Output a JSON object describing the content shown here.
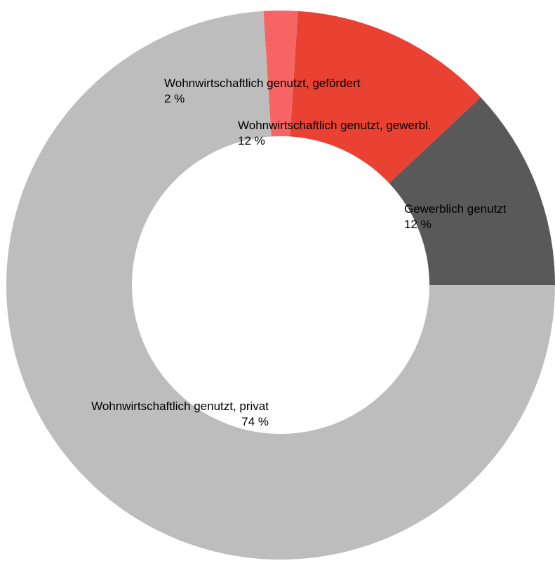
{
  "chart_data": {
    "type": "pie",
    "donut": true,
    "start": "3 o'clock, counter-clockwise",
    "slices": [
      {
        "label": "Gewerblich genutzt",
        "value": 12,
        "value_label": "12 %",
        "color": "#595959"
      },
      {
        "label": "Wohnwirtschaftlich genutzt, gewerbl.",
        "value": 12,
        "value_label": "12 %",
        "color": "#e94132"
      },
      {
        "label": "Wohnwirtschaftlich genutzt, gefördert",
        "value": 2,
        "value_label": "2 %",
        "color": "#f76464"
      },
      {
        "label": "Wohnwirtschaftlich genutzt, privat",
        "value": 74,
        "value_label": "74 %",
        "color": "#bdbdbd"
      }
    ]
  }
}
